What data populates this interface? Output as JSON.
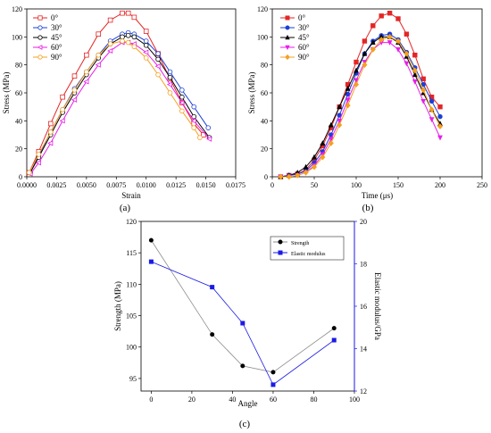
{
  "chart_data": [
    {
      "id": "a",
      "type": "line",
      "panel_label": "(a)",
      "xlabel": "Strain",
      "ylabel": "Stress (MPa)",
      "xlim": [
        0.0,
        0.0175
      ],
      "ylim": [
        0,
        120
      ],
      "xticks": [
        "0.0000",
        "0.0025",
        "0.0050",
        "0.0075",
        "0.0100",
        "0.0125",
        "0.0150",
        "0.0175"
      ],
      "xtick_values": [
        0,
        0.0025,
        0.005,
        0.0075,
        0.01,
        0.0125,
        0.015,
        0.0175
      ],
      "yticks": [
        "0",
        "20",
        "40",
        "60",
        "80",
        "100",
        "120"
      ],
      "ytick_values": [
        0,
        20,
        40,
        60,
        80,
        100,
        120
      ],
      "legend_position": "top-left",
      "series": [
        {
          "name": "0°",
          "color": "#e32626",
          "marker": "square-open",
          "x": [
            0.0002,
            0.001,
            0.002,
            0.003,
            0.004,
            0.005,
            0.006,
            0.007,
            0.008,
            0.0085,
            0.009,
            0.01,
            0.011,
            0.012,
            0.013,
            0.014,
            0.0148
          ],
          "y": [
            3,
            18,
            38,
            57,
            72,
            87,
            102,
            112,
            117,
            117,
            114,
            104,
            88,
            70,
            53,
            38,
            30
          ]
        },
        {
          "name": "30°",
          "color": "#1a3fd8",
          "marker": "circle-open",
          "x": [
            0.0003,
            0.001,
            0.002,
            0.003,
            0.004,
            0.005,
            0.006,
            0.007,
            0.008,
            0.0085,
            0.009,
            0.01,
            0.011,
            0.012,
            0.013,
            0.014,
            0.0152
          ],
          "y": [
            3,
            15,
            32,
            48,
            63,
            75,
            87,
            97,
            102,
            103,
            102,
            97,
            88,
            75,
            62,
            50,
            35
          ]
        },
        {
          "name": "45°",
          "color": "#000000",
          "marker": "circle-open",
          "x": [
            0.0003,
            0.001,
            0.002,
            0.003,
            0.004,
            0.005,
            0.006,
            0.007,
            0.008,
            0.0085,
            0.009,
            0.01,
            0.011,
            0.012,
            0.013,
            0.014,
            0.0153
          ],
          "y": [
            3,
            14,
            30,
            46,
            60,
            73,
            85,
            95,
            100,
            101,
            100,
            94,
            84,
            71,
            57,
            43,
            28
          ]
        },
        {
          "name": "60°",
          "color": "#e81ee8",
          "marker": "triangle-left-open",
          "x": [
            0.0003,
            0.001,
            0.002,
            0.003,
            0.004,
            0.005,
            0.006,
            0.007,
            0.008,
            0.0085,
            0.009,
            0.01,
            0.011,
            0.012,
            0.013,
            0.014,
            0.0153
          ],
          "y": [
            2,
            10,
            24,
            40,
            55,
            68,
            80,
            90,
            96,
            96,
            95,
            89,
            79,
            66,
            53,
            40,
            27
          ]
        },
        {
          "name": "90°",
          "color": "#f5a020",
          "marker": "circle-open",
          "x": [
            0.0002,
            0.001,
            0.002,
            0.003,
            0.004,
            0.005,
            0.006,
            0.007,
            0.008,
            0.0085,
            0.009,
            0.01,
            0.011,
            0.012,
            0.013,
            0.014,
            0.0145
          ],
          "y": [
            3,
            16,
            32,
            48,
            62,
            75,
            87,
            95,
            97,
            96,
            93,
            85,
            73,
            60,
            47,
            35,
            28
          ]
        }
      ]
    },
    {
      "id": "b",
      "type": "line",
      "panel_label": "(b)",
      "xlabel": "Time (μs)",
      "ylabel": "Stress (MPa)",
      "xlim": [
        0,
        250
      ],
      "ylim": [
        0,
        120
      ],
      "xticks": [
        "0",
        "50",
        "100",
        "150",
        "200",
        "250"
      ],
      "xtick_values": [
        0,
        50,
        100,
        150,
        200,
        250
      ],
      "yticks": [
        "0",
        "20",
        "40",
        "60",
        "80",
        "100",
        "120"
      ],
      "ytick_values": [
        0,
        20,
        40,
        60,
        80,
        100,
        120
      ],
      "legend_position": "top-left",
      "series": [
        {
          "name": "0°",
          "color": "#e32626",
          "marker": "square",
          "x": [
            10,
            20,
            30,
            40,
            50,
            60,
            70,
            80,
            90,
            100,
            110,
            120,
            130,
            140,
            150,
            160,
            170,
            180,
            190,
            200
          ],
          "y": [
            0,
            1,
            2,
            5,
            12,
            22,
            35,
            50,
            66,
            82,
            97,
            108,
            115,
            117,
            113,
            102,
            87,
            70,
            57,
            50
          ]
        },
        {
          "name": "30°",
          "color": "#1a3fd8",
          "marker": "circle",
          "x": [
            10,
            20,
            30,
            40,
            50,
            60,
            70,
            80,
            90,
            100,
            110,
            120,
            130,
            140,
            150,
            160,
            170,
            180,
            190,
            200
          ],
          "y": [
            0,
            1,
            2,
            4,
            10,
            18,
            30,
            44,
            59,
            74,
            88,
            97,
            101,
            102,
            98,
            89,
            78,
            66,
            54,
            43
          ]
        },
        {
          "name": "45°",
          "color": "#000000",
          "marker": "triangle-up",
          "x": [
            10,
            20,
            30,
            40,
            50,
            60,
            70,
            80,
            90,
            100,
            110,
            120,
            130,
            140,
            150,
            160,
            170,
            180,
            190,
            200
          ],
          "y": [
            0,
            1,
            3,
            7,
            14,
            24,
            37,
            50,
            63,
            76,
            88,
            96,
            100,
            100,
            96,
            86,
            73,
            60,
            48,
            38
          ]
        },
        {
          "name": "60°",
          "color": "#e81ee8",
          "marker": "triangle-down",
          "x": [
            10,
            20,
            30,
            40,
            50,
            60,
            70,
            80,
            90,
            100,
            110,
            120,
            130,
            140,
            150,
            160,
            170,
            180,
            190,
            200
          ],
          "y": [
            0,
            0,
            1,
            3,
            8,
            16,
            27,
            40,
            55,
            69,
            82,
            91,
            96,
            96,
            91,
            81,
            68,
            54,
            41,
            28
          ]
        },
        {
          "name": "90°",
          "color": "#f5a020",
          "marker": "diamond",
          "x": [
            10,
            20,
            30,
            40,
            50,
            60,
            70,
            80,
            90,
            100,
            110,
            120,
            130,
            140,
            150,
            160,
            170,
            180,
            190,
            200
          ],
          "y": [
            0,
            0,
            1,
            3,
            7,
            14,
            24,
            37,
            51,
            66,
            80,
            91,
            98,
            100,
            97,
            88,
            76,
            62,
            48,
            36
          ]
        }
      ]
    },
    {
      "id": "c",
      "type": "line",
      "panel_label": "(c)",
      "xlabel": "Angle",
      "ylabel": "Strength (MPa)",
      "ylabel_right": "Elastic modulus/GPa",
      "xlim": [
        -5,
        100
      ],
      "ylim": [
        93,
        120
      ],
      "ylim_right": [
        12,
        20
      ],
      "xticks": [
        "0",
        "20",
        "40",
        "60",
        "80",
        "100"
      ],
      "xtick_values": [
        0,
        20,
        40,
        60,
        80,
        100
      ],
      "yticks": [
        "95",
        "100",
        "105",
        "110",
        "115",
        "120"
      ],
      "ytick_values": [
        95,
        100,
        105,
        110,
        115,
        120
      ],
      "yticks_right": [
        "12",
        "14",
        "16",
        "18",
        "20"
      ],
      "ytick_values_right": [
        12,
        14,
        16,
        18,
        20
      ],
      "legend_position": "top-right",
      "series": [
        {
          "name": "Strength",
          "color": "#000000",
          "marker": "circle",
          "axis": "left",
          "line_color": "#8c8c8c",
          "x": [
            0,
            30,
            45,
            60,
            90
          ],
          "y": [
            117,
            102,
            97,
            96,
            103
          ]
        },
        {
          "name": "Elastic modulus",
          "color": "#1a1ae6",
          "marker": "square",
          "axis": "right",
          "line_color": "#1a1ae6",
          "x": [
            0,
            30,
            45,
            60,
            90
          ],
          "y": [
            18.1,
            16.9,
            15.2,
            12.3,
            14.4
          ]
        }
      ]
    }
  ]
}
